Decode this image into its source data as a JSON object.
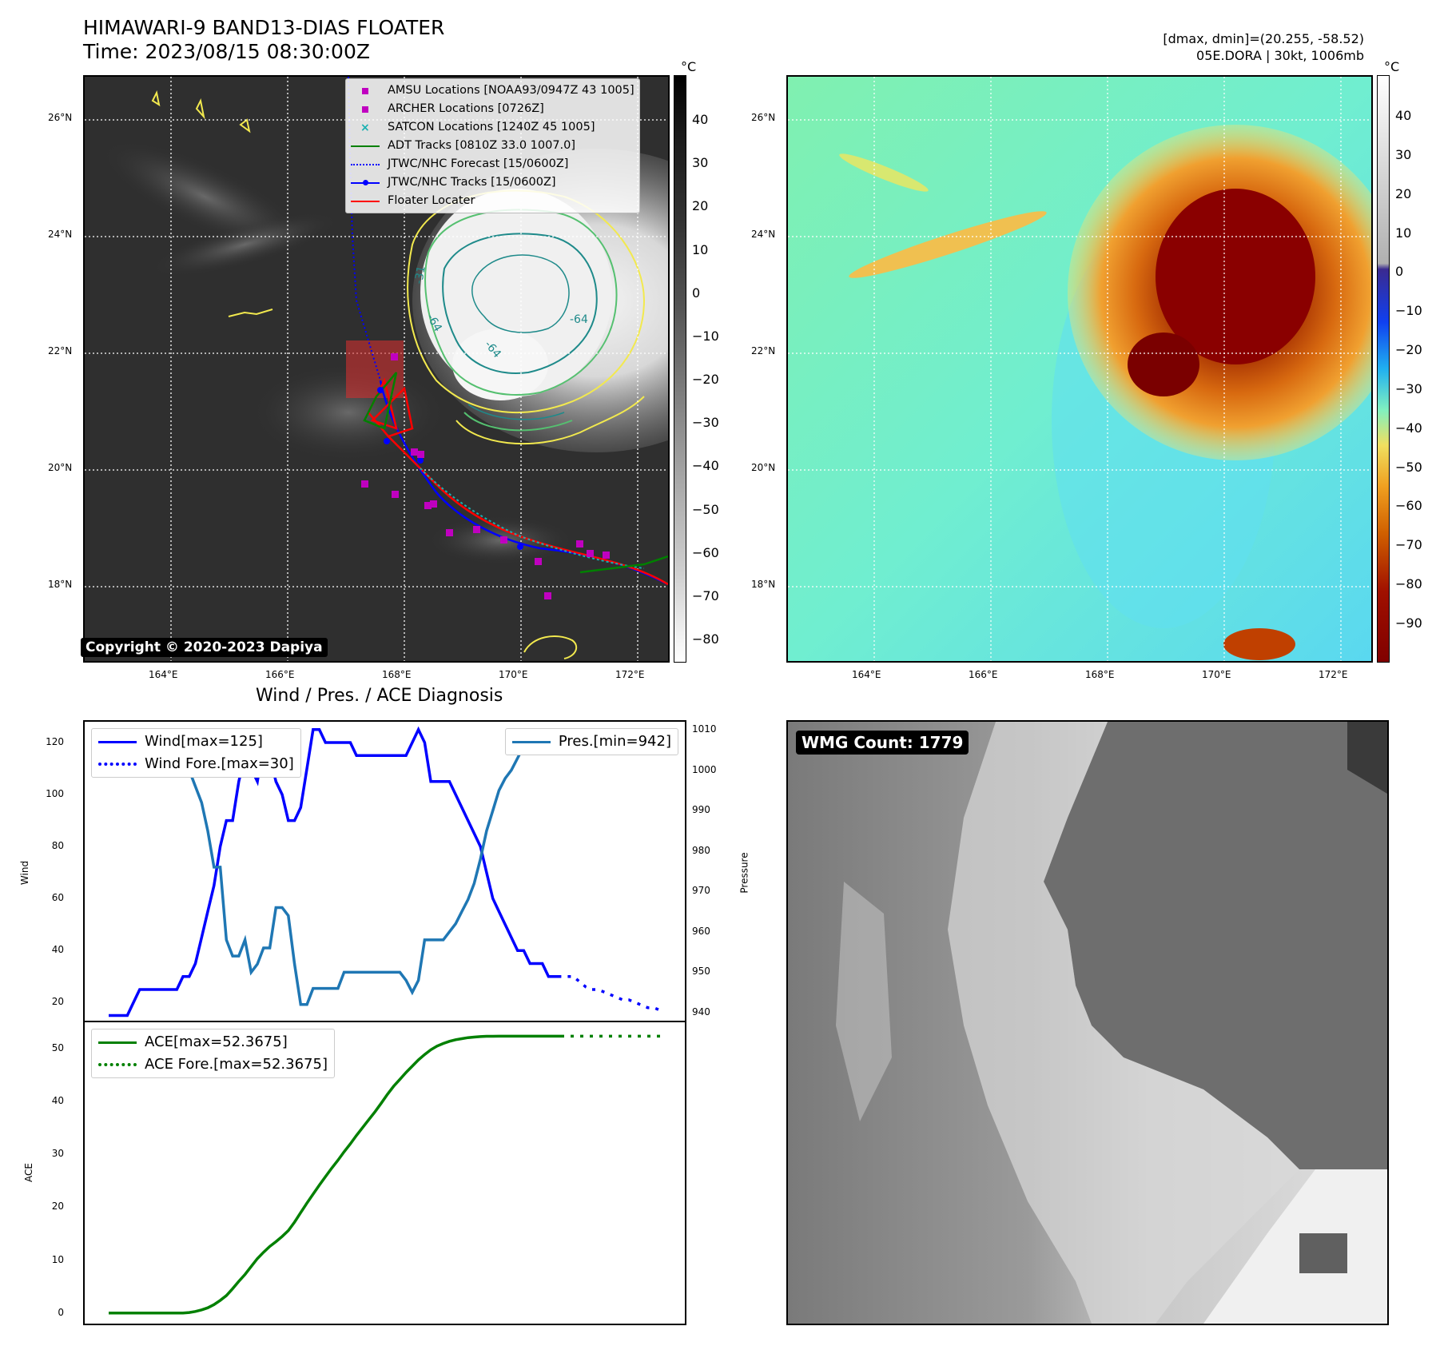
{
  "header": {
    "title_line1": "HIMAWARI-9 BAND13-DIAS FLOATER",
    "title_line2": "Time: 2023/08/15 08:30:00Z",
    "stats_line1": "[dmax, dmin]=(20.255, -58.52)",
    "stats_line2": "05E.DORA | 30kt, 1006mb"
  },
  "map_panel": {
    "copyright": "Copyright © 2020-2023 Dapiya",
    "unit": "°C",
    "lon_ticks": [
      "164°E",
      "166°E",
      "168°E",
      "170°E",
      "172°E"
    ],
    "lat_ticks": [
      "26°N",
      "24°N",
      "22°N",
      "20°N",
      "18°N"
    ],
    "colorbar_ticks": [
      "40",
      "30",
      "20",
      "10",
      "0",
      "−10",
      "−20",
      "−30",
      "−40",
      "−50",
      "−60",
      "−70",
      "−80"
    ],
    "contour_labels": [
      "-64",
      "-64",
      "-64",
      "-31"
    ],
    "legend": [
      {
        "label": "AMSU Locations [NOAA93/0947Z 43 1005]",
        "symbol": "square",
        "color": "#c000c0"
      },
      {
        "label": "ARCHER Locations [0726Z]",
        "symbol": "square",
        "color": "#c000c0"
      },
      {
        "label": "SATCON Locations [1240Z 45 1005]",
        "symbol": "x",
        "color": "#17b0b0"
      },
      {
        "label": "ADT Tracks [0810Z 33.0 1007.0]",
        "symbol": "line",
        "color": "#008000"
      },
      {
        "label": "JTWC/NHC Forecast [15/0600Z]",
        "symbol": "dotted",
        "color": "#0000ff"
      },
      {
        "label": "JTWC/NHC Tracks [15/0600Z]",
        "symbol": "line-dot",
        "color": "#0000ff"
      },
      {
        "label": "Floater Locater",
        "symbol": "line",
        "color": "#ff0000"
      }
    ]
  },
  "enhanced_panel": {
    "unit": "°C",
    "lon_ticks": [
      "164°E",
      "166°E",
      "168°E",
      "170°E",
      "172°E"
    ],
    "lat_ticks": [
      "26°N",
      "24°N",
      "22°N",
      "20°N",
      "18°N"
    ],
    "colorbar_ticks": [
      "40",
      "30",
      "20",
      "10",
      "0",
      "−10",
      "−20",
      "−30",
      "−40",
      "−50",
      "−60",
      "−70",
      "−80",
      "−90"
    ]
  },
  "diag_panel": {
    "title": "Wind / Pres. / ACE Diagnosis",
    "wind_ylabel": "Wind",
    "pres_ylabel": "Pressure",
    "ace_ylabel": "ACE",
    "wind_legend": [
      "Wind[max=125]",
      "Wind Fore.[max=30]"
    ],
    "pres_legend": [
      "Pres.[min=942]"
    ],
    "ace_legend": [
      "ACE[max=52.3675]",
      "ACE Fore.[max=52.3675]"
    ],
    "wind_ticks": [
      "120",
      "100",
      "80",
      "60",
      "40",
      "20"
    ],
    "pres_ticks": [
      "1010",
      "1000",
      "990",
      "980",
      "970",
      "960",
      "950",
      "940"
    ],
    "ace_ticks": [
      "50",
      "40",
      "30",
      "20",
      "10",
      "0"
    ]
  },
  "wmg_panel": {
    "label": "WMG Count: 1779"
  },
  "chart_data": [
    {
      "type": "line",
      "title": "Wind / Pres. / ACE Diagnosis",
      "ylabel": "Wind",
      "ylim": [
        13,
        128
      ],
      "x": [
        0,
        1,
        2,
        3,
        4,
        5,
        6,
        7,
        8,
        9,
        10,
        11,
        12,
        13,
        14,
        15,
        16,
        17,
        18,
        19,
        20,
        21,
        22,
        23,
        24,
        25,
        26,
        27,
        28,
        29,
        30,
        31,
        32,
        33,
        34,
        35,
        36,
        37,
        38,
        39,
        40,
        41,
        42,
        43,
        44,
        45,
        46,
        47,
        48,
        49,
        50,
        51,
        52,
        53,
        54,
        55,
        56,
        57,
        58,
        59,
        60,
        61,
        62,
        63,
        64,
        65,
        66,
        67,
        68,
        69,
        70,
        71,
        72,
        73,
        74,
        75,
        76,
        77,
        78,
        79,
        80,
        81,
        82,
        83,
        84,
        85,
        86,
        87,
        88,
        89
      ],
      "series": [
        {
          "name": "Wind[max=125]",
          "values": [
            15,
            15,
            15,
            15,
            20,
            25,
            25,
            25,
            25,
            25,
            25,
            25,
            30,
            30,
            35,
            45,
            55,
            65,
            80,
            90,
            90,
            105,
            115,
            110,
            105,
            120,
            115,
            105,
            100,
            90,
            90,
            95,
            110,
            125,
            125,
            120,
            120,
            120,
            120,
            120,
            115,
            115,
            115,
            115,
            115,
            115,
            115,
            115,
            115,
            120,
            125,
            120,
            105,
            105,
            105,
            105,
            100,
            95,
            90,
            85,
            80,
            70,
            60,
            55,
            50,
            45,
            40,
            40,
            35,
            35,
            35,
            30,
            30,
            30,
            null,
            null,
            null,
            null,
            null,
            null,
            null,
            null,
            null,
            null,
            null,
            null,
            null,
            null,
            null,
            null
          ]
        },
        {
          "name": "Wind Fore.[max=30]",
          "values": [
            null,
            null,
            null,
            null,
            null,
            null,
            null,
            null,
            null,
            null,
            null,
            null,
            null,
            null,
            null,
            null,
            null,
            null,
            null,
            null,
            null,
            null,
            null,
            null,
            null,
            null,
            null,
            null,
            null,
            null,
            null,
            null,
            null,
            null,
            null,
            null,
            null,
            null,
            null,
            null,
            null,
            null,
            null,
            null,
            null,
            null,
            null,
            null,
            null,
            null,
            null,
            null,
            null,
            null,
            null,
            null,
            null,
            null,
            null,
            null,
            null,
            null,
            null,
            null,
            null,
            null,
            null,
            null,
            null,
            null,
            null,
            30,
            30,
            30,
            30,
            30,
            28,
            26,
            25,
            25,
            24,
            23,
            22,
            21,
            21,
            20,
            19,
            18,
            18,
            17
          ]
        }
      ]
    },
    {
      "type": "line",
      "ylabel": "Pressure",
      "ylim": [
        938,
        1012
      ],
      "x": [
        0,
        1,
        2,
        3,
        4,
        5,
        6,
        7,
        8,
        9,
        10,
        11,
        12,
        13,
        14,
        15,
        16,
        17,
        18,
        19,
        20,
        21,
        22,
        23,
        24,
        25,
        26,
        27,
        28,
        29,
        30,
        31,
        32,
        33,
        34,
        35,
        36,
        37,
        38,
        39,
        40,
        41,
        42,
        43,
        44,
        45,
        46,
        47,
        48,
        49,
        50,
        51,
        52,
        53,
        54,
        55,
        56,
        57,
        58,
        59,
        60,
        61,
        62,
        63,
        64,
        65,
        66,
        67,
        68,
        69,
        70,
        71,
        72,
        73
      ],
      "series": [
        {
          "name": "Pres.[min=942]",
          "values": [
            1010,
            1010,
            1010,
            1010,
            1010,
            1009,
            1008,
            1008,
            1007,
            1006,
            1005,
            1004,
            1003,
            1000,
            996,
            992,
            985,
            976,
            976,
            958,
            954,
            954,
            958,
            950,
            952,
            956,
            956,
            966,
            966,
            964,
            952,
            942,
            942,
            946,
            946,
            946,
            946,
            946,
            950,
            950,
            950,
            950,
            950,
            950,
            950,
            950,
            950,
            950,
            948,
            945,
            948,
            958,
            958,
            958,
            958,
            960,
            962,
            965,
            968,
            972,
            978,
            985,
            990,
            995,
            998,
            1000,
            1003,
            1006,
            1006,
            1007,
            1006,
            1006,
            1006,
            1005
          ]
        }
      ]
    },
    {
      "type": "line",
      "ylabel": "ACE",
      "ylim": [
        -2,
        55
      ],
      "x": [
        0,
        1,
        2,
        3,
        4,
        5,
        6,
        7,
        8,
        9,
        10,
        11,
        12,
        13,
        14,
        15,
        16,
        17,
        18,
        19,
        20,
        21,
        22,
        23,
        24,
        25,
        26,
        27,
        28,
        29,
        30,
        31,
        32,
        33,
        34,
        35,
        36,
        37,
        38,
        39,
        40,
        41,
        42,
        43,
        44,
        45,
        46,
        47,
        48,
        49,
        50,
        51,
        52,
        53,
        54,
        55,
        56,
        57,
        58,
        59,
        60,
        61,
        62,
        63,
        64,
        65,
        66,
        67,
        68,
        69,
        70,
        71,
        72,
        73,
        74,
        75,
        76,
        77,
        78,
        79,
        80,
        81,
        82,
        83,
        84,
        85,
        86,
        87,
        88,
        89
      ],
      "series": [
        {
          "name": "ACE[max=52.3675]",
          "values": [
            0,
            0,
            0,
            0,
            0,
            0,
            0,
            0,
            0,
            0,
            0,
            0,
            0,
            0.1,
            0.3,
            0.6,
            1.0,
            1.6,
            2.4,
            3.3,
            4.6,
            6.0,
            7.3,
            8.8,
            10.3,
            11.5,
            12.6,
            13.5,
            14.5,
            15.6,
            17.2,
            19.0,
            20.8,
            22.5,
            24.2,
            25.8,
            27.4,
            28.9,
            30.5,
            32.0,
            33.6,
            35.1,
            36.6,
            38.1,
            39.7,
            41.4,
            42.9,
            44.2,
            45.5,
            46.7,
            47.9,
            48.9,
            49.8,
            50.5,
            51.0,
            51.4,
            51.7,
            51.9,
            52.1,
            52.2,
            52.3,
            52.35,
            52.36,
            52.37,
            52.37,
            52.37,
            52.37,
            52.37,
            52.37,
            52.37,
            52.37,
            52.37,
            52.37,
            52.37,
            null,
            null,
            null,
            null,
            null,
            null,
            null,
            null,
            null,
            null,
            null,
            null,
            null,
            null,
            null,
            null
          ]
        },
        {
          "name": "ACE Fore.[max=52.3675]",
          "values": [
            null,
            null,
            null,
            null,
            null,
            null,
            null,
            null,
            null,
            null,
            null,
            null,
            null,
            null,
            null,
            null,
            null,
            null,
            null,
            null,
            null,
            null,
            null,
            null,
            null,
            null,
            null,
            null,
            null,
            null,
            null,
            null,
            null,
            null,
            null,
            null,
            null,
            null,
            null,
            null,
            null,
            null,
            null,
            null,
            null,
            null,
            null,
            null,
            null,
            null,
            null,
            null,
            null,
            null,
            null,
            null,
            null,
            null,
            null,
            null,
            null,
            null,
            null,
            null,
            null,
            null,
            null,
            null,
            null,
            null,
            null,
            null,
            null,
            52.37,
            52.37,
            52.37,
            52.37,
            52.37,
            52.37,
            52.37,
            52.37,
            52.37,
            52.37,
            52.37,
            52.37,
            52.37,
            52.37,
            52.37,
            52.37,
            52.37
          ]
        }
      ]
    }
  ],
  "colors": {
    "wind": "#0000ff",
    "pressure": "#1f77b4",
    "ace": "#008000"
  }
}
